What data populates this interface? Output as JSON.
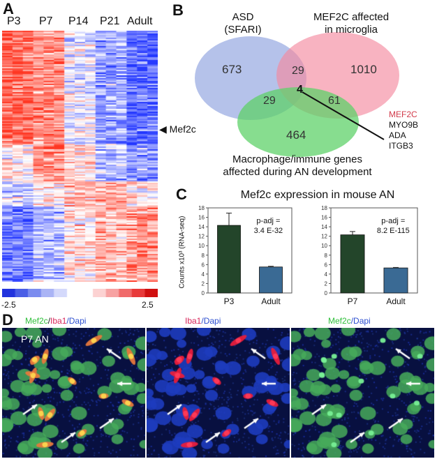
{
  "panelA": {
    "label": "A",
    "columns": [
      "P3",
      "P7",
      "P14",
      "P21",
      "Adult"
    ],
    "marker": "Mef2c",
    "scale_min": "-2.5",
    "scale_max": "2.5",
    "colors": {
      "low": "#2233dd",
      "mid": "#ffffff",
      "high": "#e02020"
    }
  },
  "panelB": {
    "label": "B",
    "set_asd": "ASD\n(SFARI)",
    "set_mef2c": "MEF2C affected\nin microglia",
    "set_macro": "Macrophage/immune genes\naffected during AN development",
    "counts": {
      "asd_only": "673",
      "asd_mef2c": "29",
      "mef2c_only": "1010",
      "asd_macro": "29",
      "center": "4",
      "mef2c_macro": "61",
      "macro_only": "464"
    },
    "genes": [
      "MEF2C",
      "MYO9B",
      "ADA",
      "ITGB3"
    ],
    "colors": {
      "asd": "#8da2df",
      "mef2c": "#f48aa0",
      "macro": "#5fd26a"
    }
  },
  "panelC": {
    "label": "C",
    "title": "Mef2c expression in mouse AN",
    "ylabel": "Counts x10³ (RNA-seq)"
  },
  "chart_data": [
    {
      "type": "bar",
      "categories": [
        "P3",
        "Adult"
      ],
      "values": [
        14.3,
        5.5
      ],
      "errors": [
        2.6,
        0.15
      ],
      "ylim": [
        0,
        18
      ],
      "yticks": [
        0,
        2,
        4,
        6,
        8,
        10,
        12,
        14,
        16,
        18
      ],
      "annotation": "p-adj =\n3.4 E-32",
      "colors": [
        "#23452a",
        "#3a6a94"
      ]
    },
    {
      "type": "bar",
      "categories": [
        "P7",
        "Adult"
      ],
      "values": [
        12.3,
        5.3
      ],
      "errors": [
        0.7,
        0.1
      ],
      "ylim": [
        0,
        18
      ],
      "yticks": [
        0,
        2,
        4,
        6,
        8,
        10,
        12,
        14,
        16,
        18
      ],
      "annotation": "p-adj =\n8.2 E-115",
      "colors": [
        "#23452a",
        "#3a6a94"
      ]
    }
  ],
  "panelD": {
    "label": "D",
    "titles": [
      [
        {
          "t": "Mef2c",
          "c": "green"
        },
        {
          "t": "/",
          "c": "black"
        },
        {
          "t": "Iba1",
          "c": "red"
        },
        {
          "t": "/Dapi",
          "c": "blue"
        }
      ],
      [
        {
          "t": "Iba1",
          "c": "red"
        },
        {
          "t": "/Dapi",
          "c": "blue"
        }
      ],
      [
        {
          "t": "Mef2c",
          "c": "green"
        },
        {
          "t": "/Dapi",
          "c": "blue"
        }
      ]
    ],
    "inset_label": "P7 AN"
  }
}
